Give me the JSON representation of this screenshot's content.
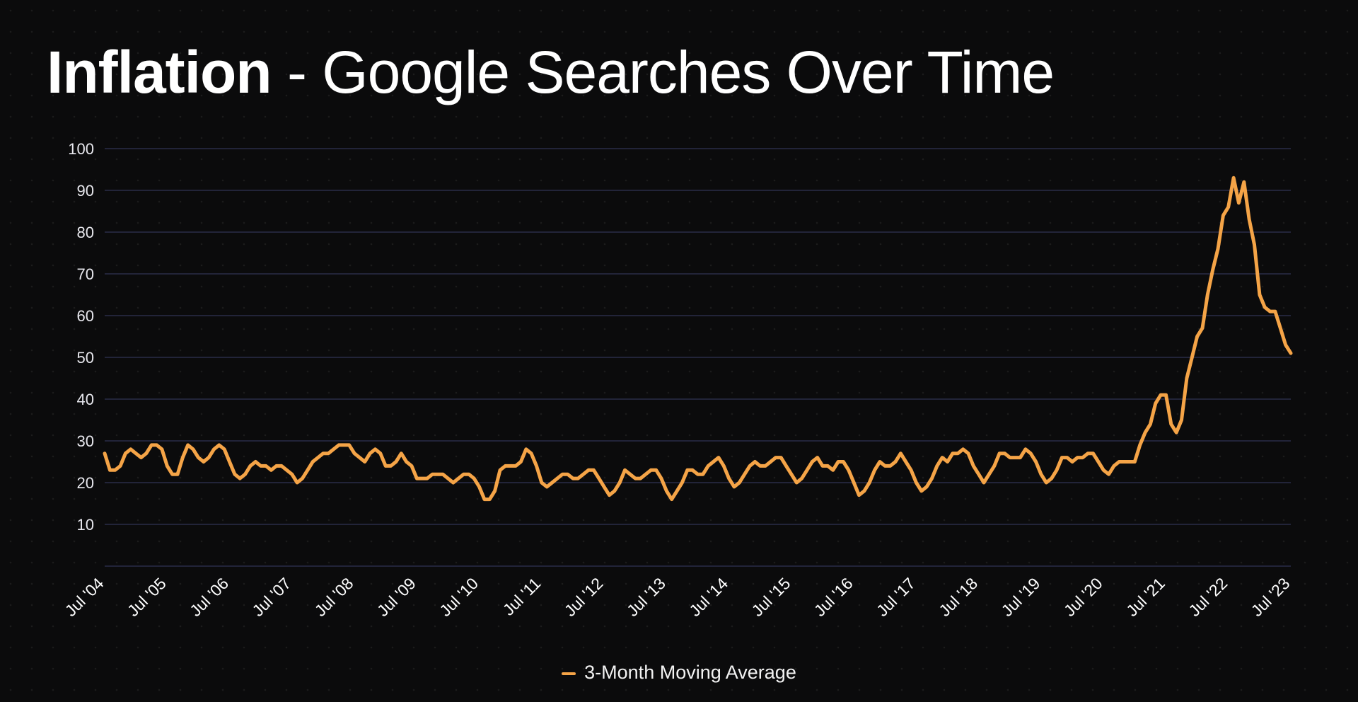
{
  "title": {
    "bold": "Inflation",
    "rest": " - Google Searches Over Time"
  },
  "legend": {
    "label": "3-Month Moving Average",
    "color": "#f5a447"
  },
  "colors": {
    "background": "#0b0b0c",
    "grid": "#2b2c48",
    "line": "#f5a447"
  },
  "chart_data": {
    "type": "line",
    "title": "Inflation - Google Searches Over Time",
    "xlabel": "",
    "ylabel": "",
    "ylim": [
      0,
      100
    ],
    "yticks": [
      10,
      20,
      30,
      40,
      50,
      60,
      70,
      80,
      90,
      100
    ],
    "grid": true,
    "legend_position": "bottom",
    "x_tick_labels": [
      "Jul '04",
      "Jul '05",
      "Jul '06",
      "Jul '07",
      "Jul '08",
      "Jul '09",
      "Jul '10",
      "Jul '11",
      "Jul '12",
      "Jul '13",
      "Jul '14",
      "Jul '15",
      "Jul '16",
      "Jul '17",
      "Jul '18",
      "Jul '19",
      "Jul '20",
      "Jul '21",
      "Jul '22",
      "Jul '23"
    ],
    "x_range": [
      "Jul '04",
      "Jul '23"
    ],
    "series": [
      {
        "name": "3-Month Moving Average",
        "values": [
          27,
          23,
          23,
          24,
          27,
          28,
          27,
          26,
          27,
          29,
          29,
          28,
          24,
          22,
          22,
          26,
          29,
          28,
          26,
          25,
          26,
          28,
          29,
          28,
          25,
          22,
          21,
          22,
          24,
          25,
          24,
          24,
          23,
          24,
          24,
          23,
          22,
          20,
          21,
          23,
          25,
          26,
          27,
          27,
          28,
          29,
          29,
          29,
          27,
          26,
          25,
          27,
          28,
          27,
          24,
          24,
          25,
          27,
          25,
          24,
          21,
          21,
          21,
          22,
          22,
          22,
          21,
          20,
          21,
          22,
          22,
          21,
          19,
          16,
          16,
          18,
          23,
          24,
          24,
          24,
          25,
          28,
          27,
          24,
          20,
          19,
          20,
          21,
          22,
          22,
          21,
          21,
          22,
          23,
          23,
          21,
          19,
          17,
          18,
          20,
          23,
          22,
          21,
          21,
          22,
          23,
          23,
          21,
          18,
          16,
          18,
          20,
          23,
          23,
          22,
          22,
          24,
          25,
          26,
          24,
          21,
          19,
          20,
          22,
          24,
          25,
          24,
          24,
          25,
          26,
          26,
          24,
          22,
          20,
          21,
          23,
          25,
          26,
          24,
          24,
          23,
          25,
          25,
          23,
          20,
          17,
          18,
          20,
          23,
          25,
          24,
          24,
          25,
          27,
          25,
          23,
          20,
          18,
          19,
          21,
          24,
          26,
          25,
          27,
          27,
          28,
          27,
          24,
          22,
          20,
          22,
          24,
          27,
          27,
          26,
          26,
          26,
          28,
          27,
          25,
          22,
          20,
          21,
          23,
          26,
          26,
          25,
          26,
          26,
          27,
          27,
          25,
          23,
          22,
          24,
          25,
          25,
          25,
          25,
          29,
          32,
          34,
          39,
          41,
          41,
          34,
          32,
          35,
          45,
          50,
          55,
          57,
          65,
          71,
          76,
          84,
          86,
          93,
          87,
          92,
          83,
          77,
          65,
          62,
          61,
          61,
          57,
          53,
          51
        ]
      }
    ]
  }
}
